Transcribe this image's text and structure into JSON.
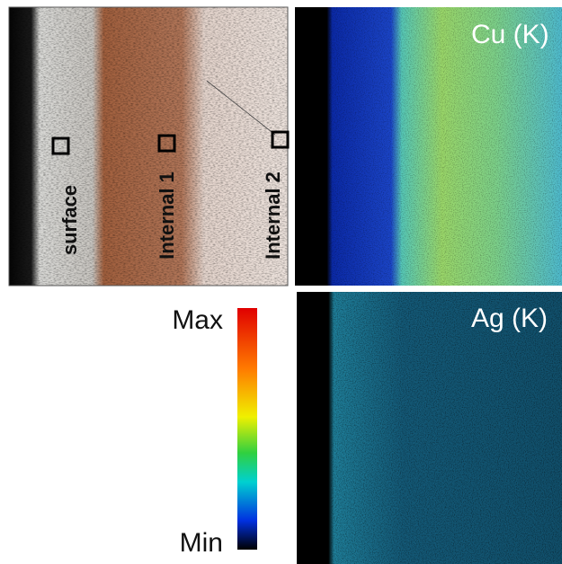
{
  "panels": {
    "optical": {
      "labels": [
        "surface",
        "Internal 1",
        "Internal 2"
      ]
    },
    "cu_map": {
      "label": "Cu (K)"
    },
    "ag_map": {
      "label": "Ag (K)"
    },
    "colorbar": {
      "max": "Max",
      "min": "Min"
    }
  }
}
